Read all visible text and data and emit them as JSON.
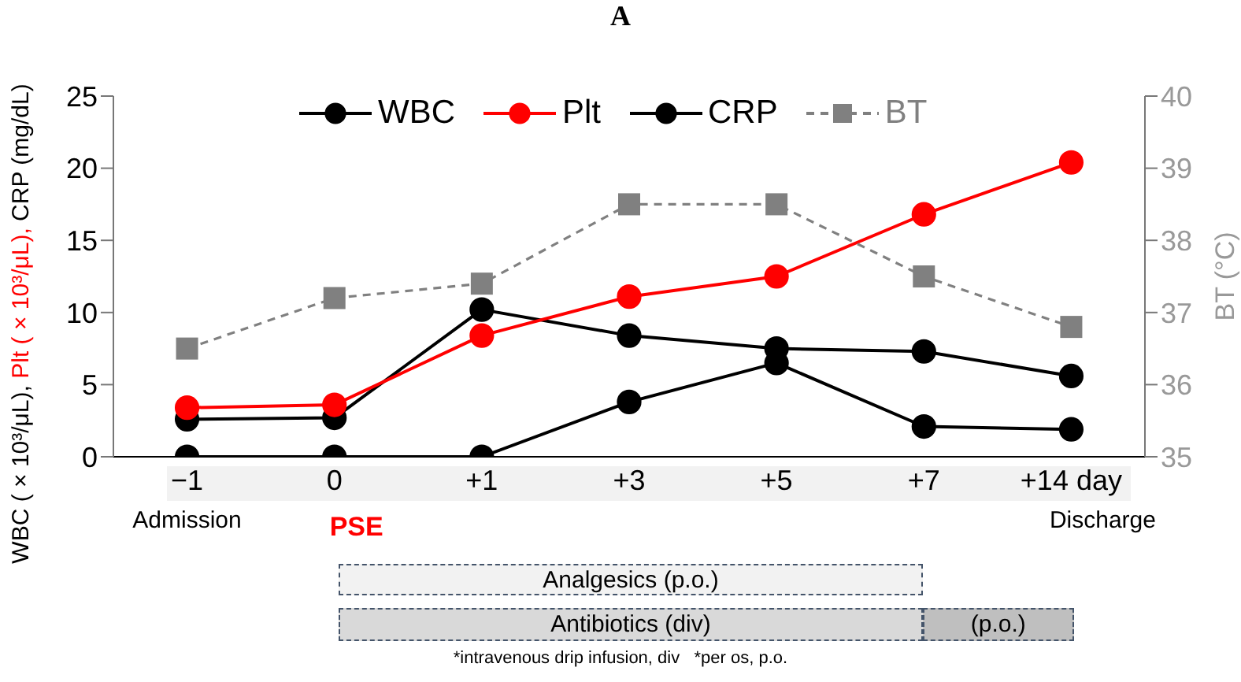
{
  "chart_data": {
    "type": "line",
    "title": "A",
    "categories": [
      "−1",
      "0",
      "+1",
      "+3",
      "+5",
      "+7",
      "+14 day"
    ],
    "series": [
      {
        "name": "WBC",
        "color": "#000000",
        "marker": "circle",
        "values": [
          2.6,
          2.7,
          10.2,
          8.4,
          7.5,
          7.3,
          5.6
        ]
      },
      {
        "name": "Plt",
        "color": "#ff0000",
        "marker": "circle",
        "values": [
          3.4,
          3.6,
          8.4,
          11.1,
          12.5,
          16.8,
          20.4
        ]
      },
      {
        "name": "CRP",
        "color": "#000000",
        "marker": "circle",
        "values": [
          0,
          0,
          0,
          3.8,
          6.5,
          2.1,
          1.9
        ]
      },
      {
        "name": "BT",
        "color": "#808080",
        "marker": "square",
        "line_style": "dashed",
        "axis": "y2",
        "values": [
          36.5,
          37.2,
          37.4,
          38.5,
          38.5,
          37.5,
          36.8
        ]
      }
    ],
    "ylabel": "WBC ( × 10³/μL), Plt ( × 10³/μL), CRP (mg/dL)",
    "y2label": "BT (°C)",
    "ylim": [
      0,
      25
    ],
    "yticks": [
      0,
      5,
      10,
      15,
      20,
      25
    ],
    "y2lim": [
      35,
      40
    ],
    "y2ticks": [
      35,
      36,
      37,
      38,
      39,
      40
    ],
    "grid": false,
    "legend": "top",
    "annotations": [
      "Admission",
      "PSE",
      "Discharge",
      "Analgesics (p.o.)",
      "Antibiotics (div)",
      "(p.o.)",
      "*intravenous drip infusion, div   *per os, p.o."
    ]
  }
}
